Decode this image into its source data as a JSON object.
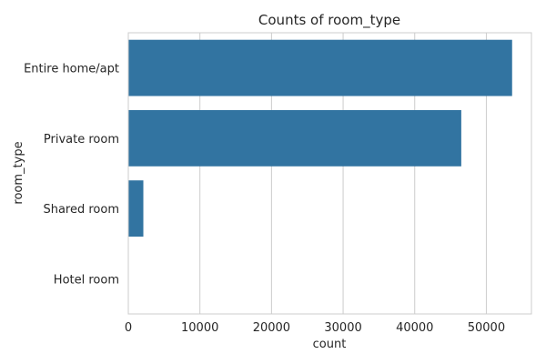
{
  "chart_data": {
    "type": "bar",
    "orientation": "horizontal",
    "title": "Counts of room_type",
    "xlabel": "count",
    "ylabel": "room_type",
    "categories": [
      "Entire home/apt",
      "Private room",
      "Shared room",
      "Hotel room"
    ],
    "values": [
      53600,
      46500,
      2100,
      0
    ],
    "xlim": [
      0,
      56300
    ],
    "xticks": [
      0,
      10000,
      20000,
      30000,
      40000,
      50000
    ],
    "grid": true,
    "bar_color": "#3274a1",
    "grid_color": "#cccccc",
    "spine_color": "#cccccc"
  }
}
